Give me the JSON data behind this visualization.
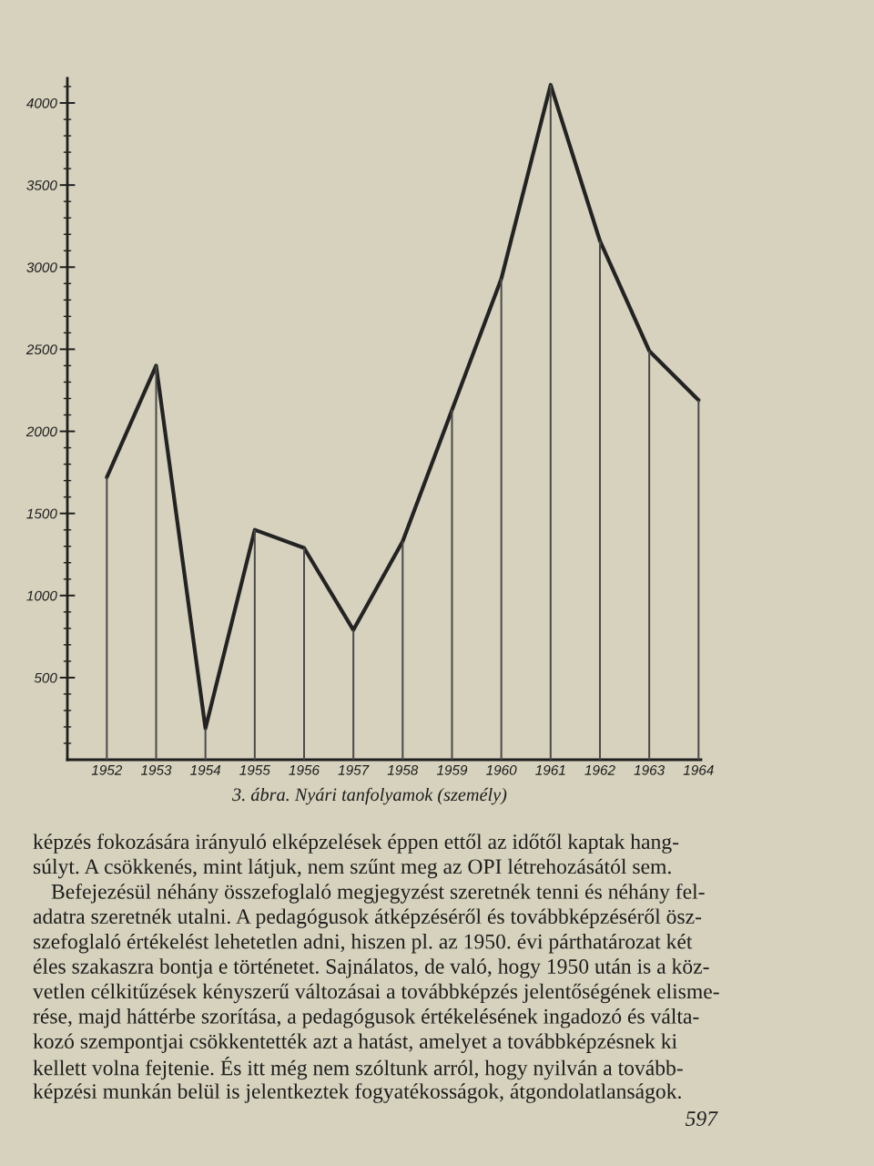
{
  "chart_data": {
    "type": "line",
    "title": "3. ábra. Nyári tanfolyamok (személy)",
    "categories": [
      "1952",
      "1953",
      "1954",
      "1955",
      "1956",
      "1957",
      "1958",
      "1959",
      "1960",
      "1961",
      "1962",
      "1963",
      "1964"
    ],
    "series": [
      {
        "color": "#232323",
        "values": [
          1720,
          2400,
          190,
          1400,
          1290,
          790,
          1330,
          2130,
          2930,
          4110,
          3160,
          2490,
          2190
        ]
      },
      {
        "type": "bar",
        "color": "#4a4a4a",
        "values": [
          1720,
          2400,
          190,
          1400,
          1290,
          790,
          1330,
          2130,
          2930,
          4110,
          3160,
          2490,
          2190
        ]
      }
    ],
    "ylim": [
      0,
      4150
    ],
    "yticks": [
      {
        "value": 100,
        "label": null
      },
      {
        "value": 200,
        "label": null
      },
      {
        "value": 300,
        "label": null
      },
      {
        "value": 400,
        "label": null
      },
      500,
      {
        "value": 600,
        "label": null
      },
      {
        "value": 700,
        "label": null
      },
      {
        "value": 800,
        "label": null
      },
      {
        "value": 900,
        "label": null
      },
      1000,
      {
        "value": 1100,
        "label": null
      },
      {
        "value": 1200,
        "label": null
      },
      {
        "value": 1300,
        "label": null
      },
      {
        "value": 1400,
        "label": null
      },
      1500,
      {
        "value": 1600,
        "label": null
      },
      {
        "value": 1700,
        "label": null
      },
      {
        "value": 1800,
        "label": null
      },
      {
        "value": 1900,
        "label": null
      },
      2000,
      {
        "value": 2100,
        "label": null
      },
      {
        "value": 2200,
        "label": null
      },
      {
        "value": 2300,
        "label": null
      },
      {
        "value": 2400,
        "label": null
      },
      2500,
      {
        "value": 2600,
        "label": null
      },
      {
        "value": 2700,
        "label": null
      },
      {
        "value": 2800,
        "label": null
      },
      {
        "value": 2900,
        "label": null
      },
      3000,
      {
        "value": 3100,
        "label": null
      },
      {
        "value": 3200,
        "label": null
      },
      {
        "value": 3300,
        "label": null
      },
      {
        "value": 3400,
        "label": null
      },
      3500,
      {
        "value": 3600,
        "label": null
      },
      {
        "value": 3700,
        "label": null
      },
      {
        "value": 3800,
        "label": null
      },
      {
        "value": 3900,
        "label": null
      },
      4000,
      {
        "value": 4100,
        "label": null
      }
    ],
    "annotations": [
      "képzés fokozására irányuló elképzelések éppen ettől az időtől kaptak hang-\nsúlyt. A csökkenés, mint látjuk, nem szűnt meg az OPI létrehozásától sem.",
      "Befejezésül néhány összefoglaló megjegyzést szeretnék tenni és néhány fel-\nadatra szeretnék utalni. A pedagógusok átképzéséről és továbbképzéséről ösz-\nszefoglaló értékelést lehetetlen adni, hiszen pl. az 1950. évi párthatározat két\néles szakaszra bontja e történetet. Sajnálatos, de való, hogy 1950 után is a köz-\nvetlen célkitűzések kényszerű változásai a továbbképzés jelentőségének elisme-\nrése, majd háttérbe szorítása, a pedagógusok értékelésének ingadozó és válta-\nkozó szempontjai csökkentették azt a hatást, amelyet a továbbképzésnek ki\nkellett volna fejtenie. És itt még nem szóltunk arról, hogy nyilván a tovább-\nképzési munkán belül is jelentkeztek fogyatékosságok, átgondolatlanságok.",
      "597"
    ]
  }
}
